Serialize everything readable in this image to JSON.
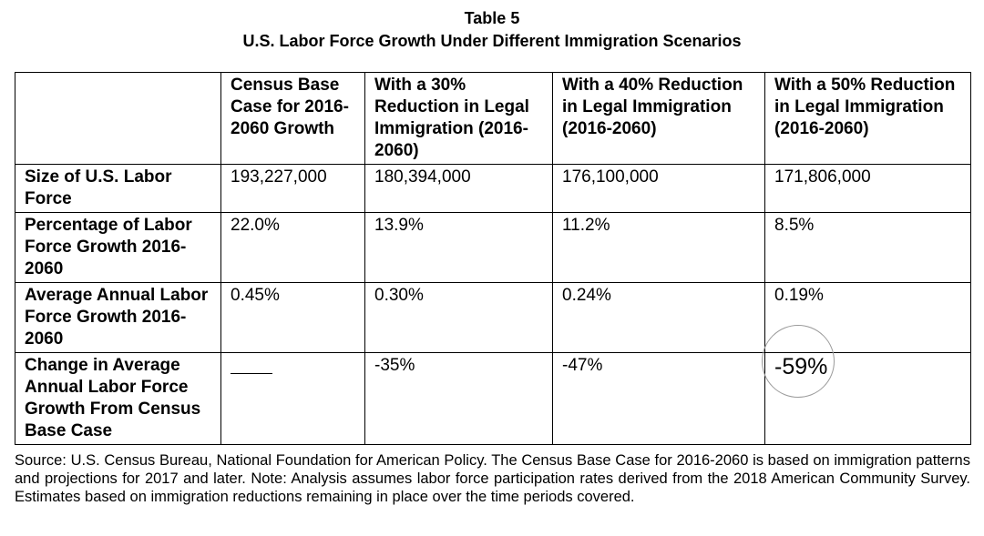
{
  "table_number": "Table 5",
  "table_title": "U.S. Labor Force Growth Under Different Immigration Scenarios",
  "columns": [
    "",
    "Census Base Case for 2016-2060 Growth",
    "With a 30% Reduction in Legal Immigration (2016-2060)",
    "With a 40% Reduction in Legal Immigration (2016-2060)",
    "With a 50% Reduction in Legal Immigration (2016-2060)"
  ],
  "rows": [
    {
      "label": "Size of U.S. Labor Force",
      "values": [
        "193,227,000",
        "180,394,000",
        "176,100,000",
        "171,806,000"
      ]
    },
    {
      "label": "Percentage of Labor Force Growth 2016-2060",
      "values": [
        "22.0%",
        "13.9%",
        "11.2%",
        "8.5%"
      ]
    },
    {
      "label": "Average Annual Labor Force Growth 2016-2060",
      "values": [
        "0.45%",
        "0.30%",
        "0.24%",
        "0.19%"
      ]
    },
    {
      "label": "Change in Average Annual Labor Force Growth From Census Base Case",
      "values": [
        "",
        "-35%",
        "-47%",
        "-59%"
      ]
    }
  ],
  "source": "Source: U.S. Census Bureau, National Foundation for American Policy. The Census Base Case for 2016-2060 is based on immigration patterns and projections for 2017 and later. Note: Analysis assumes labor force participation rates derived from the 2018 American Community Survey. Estimates based on immigration reductions remaining in place over the time periods covered."
}
